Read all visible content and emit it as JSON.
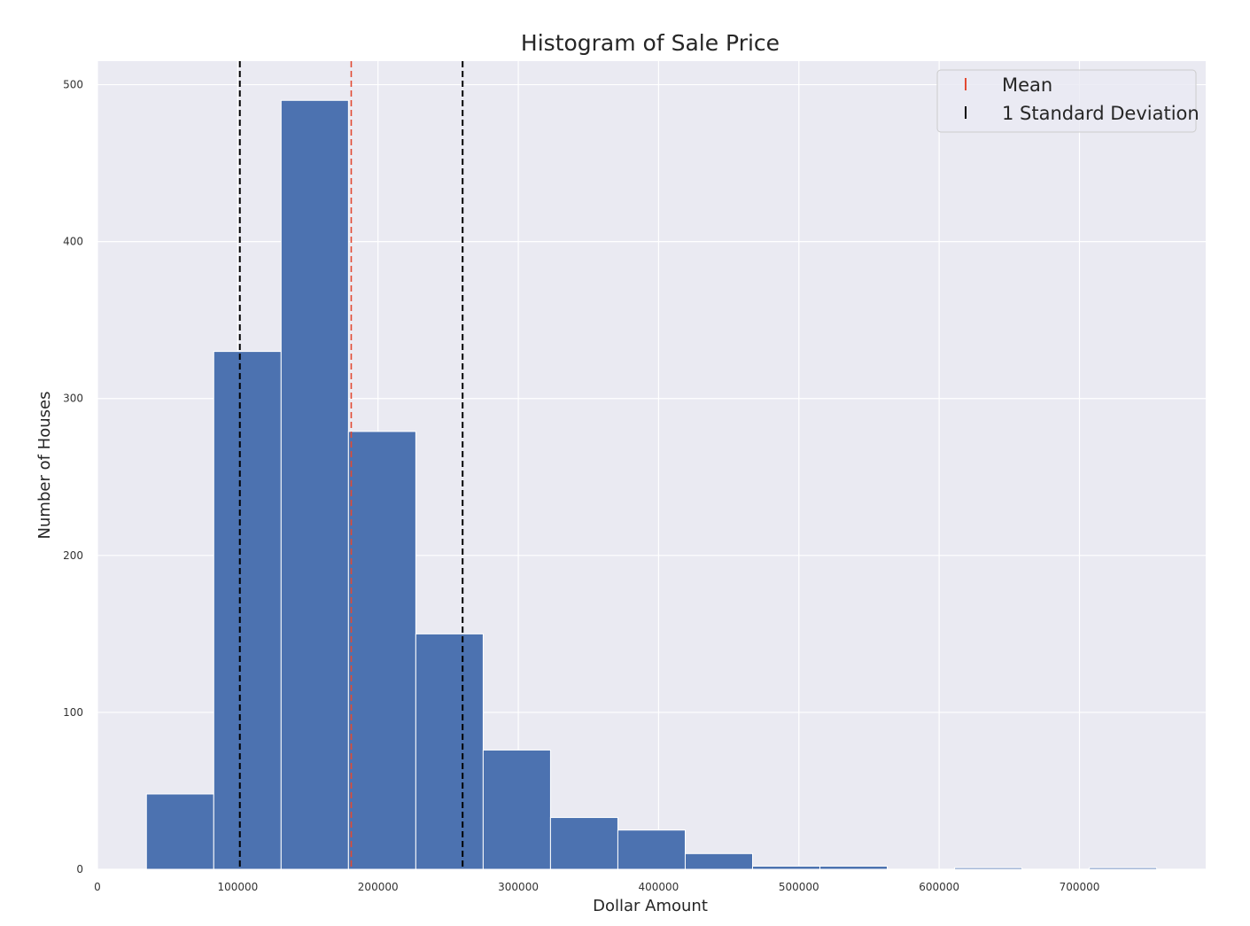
{
  "chart_data": {
    "type": "bar",
    "title": "Histogram of Sale Price",
    "xlabel": "Dollar Amount",
    "ylabel": "Number of Houses",
    "xlim": [
      0,
      790000
    ],
    "ylim": [
      0,
      515
    ],
    "xticks": [
      0,
      100000,
      200000,
      300000,
      400000,
      500000,
      600000,
      700000
    ],
    "xtick_labels": [
      "0",
      "100000",
      "200000",
      "300000",
      "400000",
      "500000",
      "600000",
      "700000"
    ],
    "yticks": [
      0,
      100,
      200,
      300,
      400,
      500
    ],
    "ytick_labels": [
      "0",
      "100",
      "200",
      "300",
      "400",
      "500"
    ],
    "grid": true,
    "bins": [
      {
        "x0": 34900,
        "x1": 82910,
        "count": 48
      },
      {
        "x0": 82910,
        "x1": 130920,
        "count": 330
      },
      {
        "x0": 130920,
        "x1": 178930,
        "count": 490
      },
      {
        "x0": 178930,
        "x1": 226940,
        "count": 279
      },
      {
        "x0": 226940,
        "x1": 274950,
        "count": 150
      },
      {
        "x0": 274950,
        "x1": 322960,
        "count": 76
      },
      {
        "x0": 322960,
        "x1": 370970,
        "count": 33
      },
      {
        "x0": 370970,
        "x1": 418980,
        "count": 25
      },
      {
        "x0": 418980,
        "x1": 466990,
        "count": 10
      },
      {
        "x0": 466990,
        "x1": 515000,
        "count": 2
      },
      {
        "x0": 515000,
        "x1": 563010,
        "count": 2
      },
      {
        "x0": 563010,
        "x1": 611020,
        "count": 0
      },
      {
        "x0": 611020,
        "x1": 659030,
        "count": 1
      },
      {
        "x0": 659030,
        "x1": 707040,
        "count": 0
      },
      {
        "x0": 707040,
        "x1": 755050,
        "count": 1
      }
    ],
    "mean_line": {
      "x": 180900
    },
    "std_lines": [
      {
        "x": 101500
      },
      {
        "x": 260300
      }
    ],
    "legend": {
      "position": "top-right",
      "entries": [
        {
          "label": "Mean",
          "color": "#e24a33"
        },
        {
          "label": "1 Standard Deviation",
          "color": "#000000"
        }
      ]
    },
    "colors": {
      "bar": "#4c72b0",
      "bar_edge": "#ffffff",
      "background": "#eaeaf2",
      "grid": "#ffffff",
      "mean": "#e24a33",
      "std": "#000000"
    }
  }
}
